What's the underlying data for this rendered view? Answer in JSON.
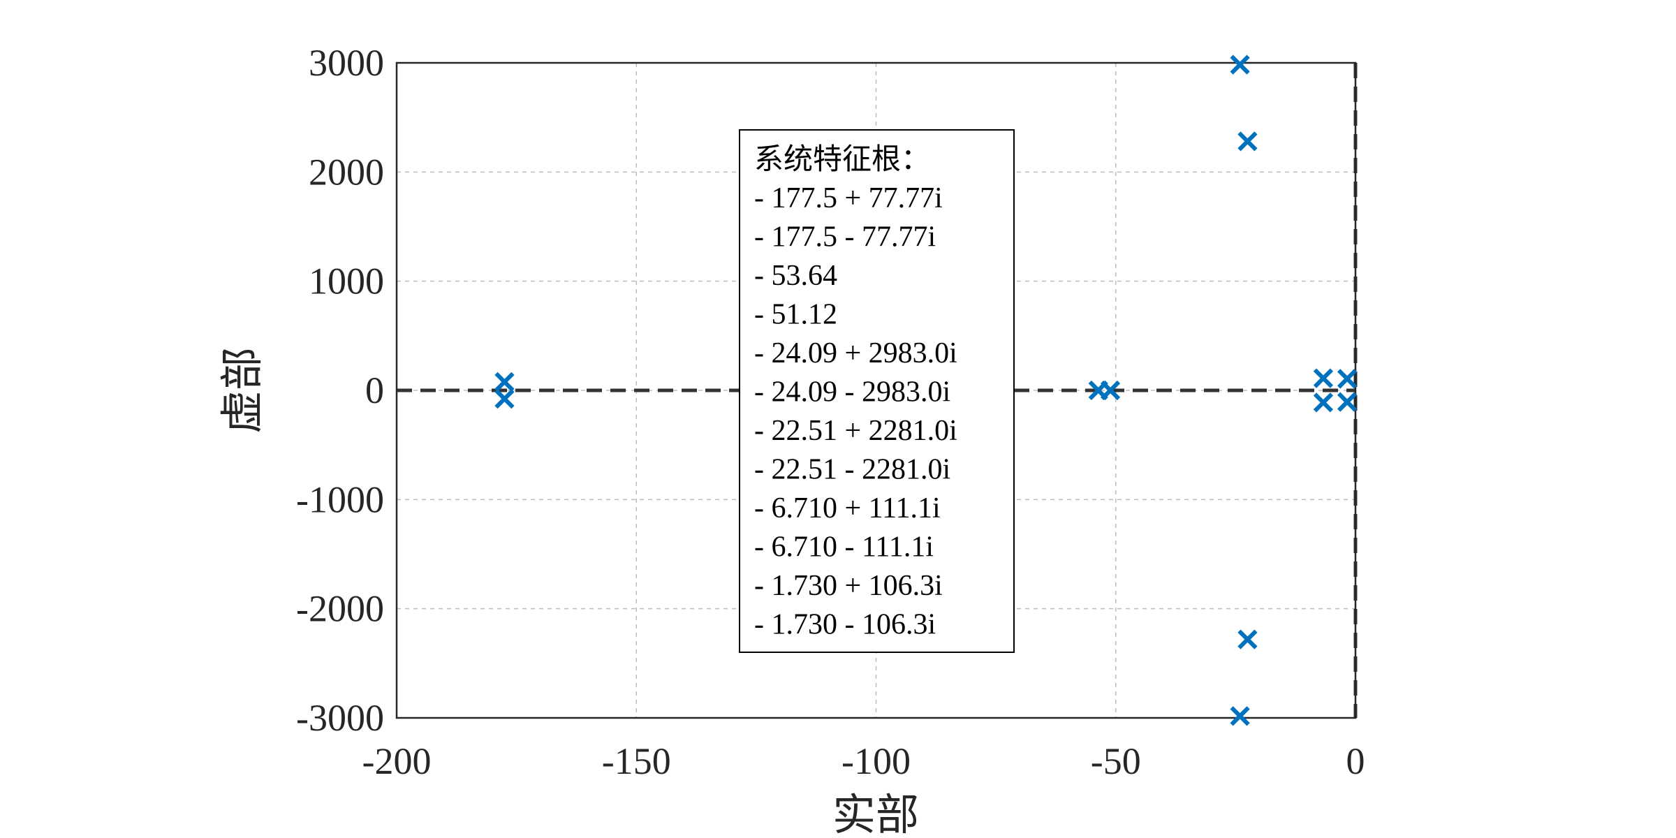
{
  "chart_data": {
    "type": "scatter",
    "xlabel": "实部",
    "ylabel": "虚部",
    "xlim": [
      -200,
      0
    ],
    "ylim": [
      -3000,
      3000
    ],
    "xticks": [
      -200,
      -150,
      -100,
      -50,
      0
    ],
    "yticks": [
      -3000,
      -2000,
      -1000,
      0,
      1000,
      2000,
      3000
    ],
    "x_tick_labels": [
      "-200",
      "-150",
      "-100",
      "-50",
      "0"
    ],
    "y_tick_labels": [
      "-3000",
      "-2000",
      "-1000",
      "0",
      "1000",
      "2000",
      "3000"
    ],
    "grid": true,
    "marker": "x",
    "marker_color": "#0072BD",
    "reference_lines": [
      {
        "orientation": "horizontal",
        "value": 0,
        "style": "dashed",
        "color": "#333333"
      },
      {
        "orientation": "vertical",
        "value": 0,
        "style": "dashed",
        "color": "#333333"
      }
    ],
    "points": [
      {
        "x": -177.5,
        "y": 77.77
      },
      {
        "x": -177.5,
        "y": -77.77
      },
      {
        "x": -53.64,
        "y": 0
      },
      {
        "x": -51.12,
        "y": 0
      },
      {
        "x": -24.09,
        "y": 2983.0
      },
      {
        "x": -24.09,
        "y": -2983.0
      },
      {
        "x": -22.51,
        "y": 2281.0
      },
      {
        "x": -22.51,
        "y": -2281.0
      },
      {
        "x": -6.71,
        "y": 111.1
      },
      {
        "x": -6.71,
        "y": -111.1
      },
      {
        "x": -1.73,
        "y": 106.3
      },
      {
        "x": -1.73,
        "y": -106.3
      }
    ],
    "annotation_box": {
      "title": "系统特征根：",
      "lines": [
        "- 177.5 + 77.77i",
        "- 177.5 - 77.77i",
        "- 53.64",
        "- 51.12",
        "- 24.09 + 2983.0i",
        "- 24.09 - 2983.0i",
        "- 22.51 + 2281.0i",
        "- 22.51 - 2281.0i",
        "- 6.710 + 111.1i",
        "- 6.710 - 111.1i",
        "- 1.730 + 106.3i",
        "- 1.730 - 106.3i"
      ]
    }
  }
}
